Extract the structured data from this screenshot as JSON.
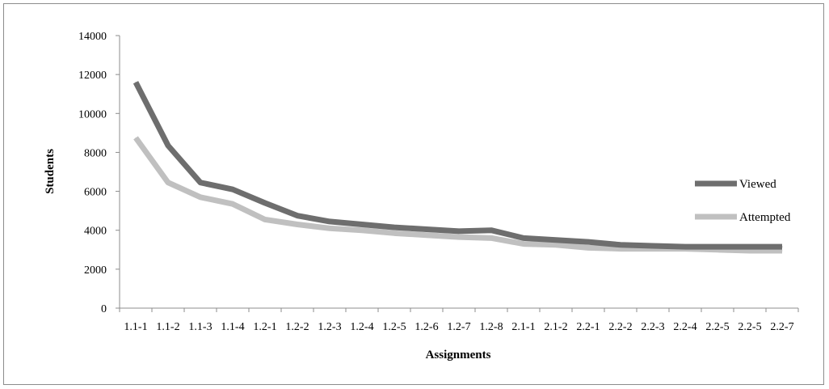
{
  "chart_data": {
    "type": "line",
    "categories": [
      "1.1-1",
      "1.1-2",
      "1.1-3",
      "1.1-4",
      "1.2-1",
      "1.2-2",
      "1.2-3",
      "1.2-4",
      "1.2-5",
      "1.2-6",
      "1.2-7",
      "1.2-8",
      "2.1-1",
      "2.1-2",
      "2.2-1",
      "2.2-2",
      "2.2-3",
      "2.2-4",
      "2.2-5",
      "2.2-5",
      "2.2-7"
    ],
    "series": [
      {
        "name": "Viewed",
        "color": "#6e6e6e",
        "values": [
          11600,
          8350,
          6450,
          6100,
          5400,
          4750,
          4450,
          4300,
          4150,
          4050,
          3950,
          4000,
          3600,
          3500,
          3400,
          3250,
          3200,
          3150,
          3150,
          3150,
          3150
        ]
      },
      {
        "name": "Attempted",
        "color": "#c0c0c0",
        "values": [
          8750,
          6450,
          5700,
          5350,
          4550,
          4300,
          4100,
          4000,
          3850,
          3750,
          3650,
          3600,
          3300,
          3250,
          3100,
          3050,
          3050,
          3050,
          3000,
          2950,
          2950
        ]
      }
    ],
    "xlabel": "Assignments",
    "ylabel": "Students",
    "ylim": [
      0,
      14000
    ],
    "yticks": [
      0,
      2000,
      4000,
      6000,
      8000,
      10000,
      12000,
      14000
    ],
    "grid": false,
    "legend": "right"
  }
}
